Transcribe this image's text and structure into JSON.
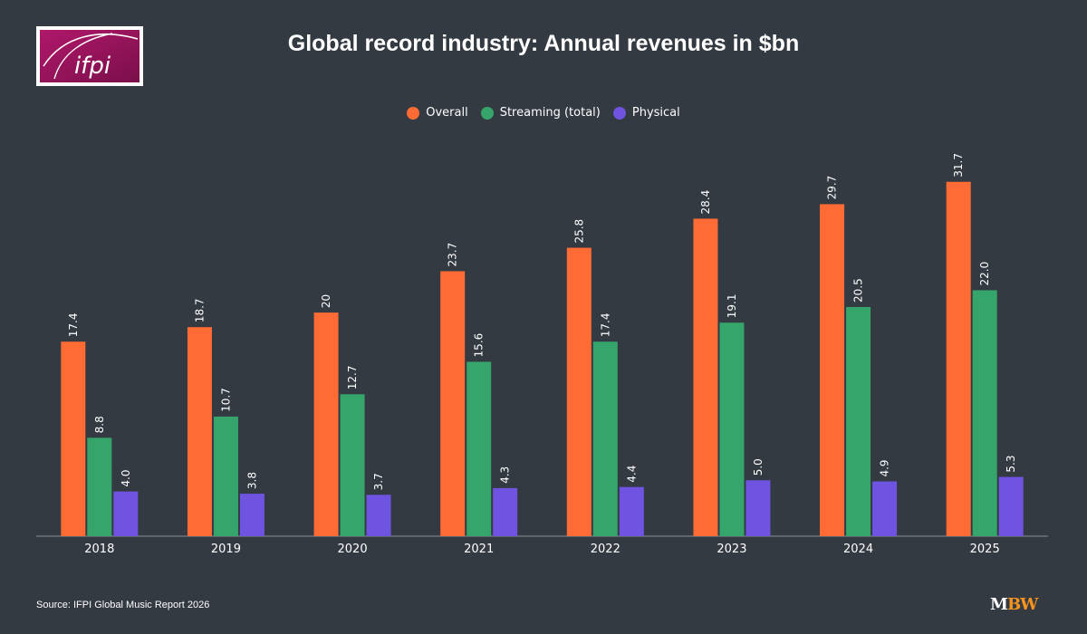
{
  "logo": {
    "text": "ifpi"
  },
  "title": "Global record industry: Annual revenues in $bn",
  "source": "Source: IFPI Global Music Report 2026",
  "brand": {
    "m": "M",
    "bw": "BW"
  },
  "chart_data": {
    "type": "bar",
    "title": "Global record industry: Annual revenues in $bn",
    "categories": [
      "2018",
      "2019",
      "2020",
      "2021",
      "2022",
      "2023",
      "2024",
      "2025"
    ],
    "series": [
      {
        "name": "Overall",
        "color": "#ff6b35",
        "values": [
          17.4,
          18.7,
          20,
          23.7,
          25.8,
          28.4,
          29.7,
          31.7
        ],
        "labels": [
          "17.4",
          "18.7",
          "20",
          "23.7",
          "25.8",
          "28.4",
          "29.7",
          "31.7"
        ]
      },
      {
        "name": "Streaming (total)",
        "color": "#35a56b",
        "values": [
          8.8,
          10.7,
          12.7,
          15.6,
          17.4,
          19.1,
          20.5,
          22.0
        ],
        "labels": [
          "8.8",
          "10.7",
          "12.7",
          "15.6",
          "17.4",
          "19.1",
          "20.5",
          "22.0"
        ]
      },
      {
        "name": "Physical",
        "color": "#6e54e0",
        "values": [
          4.0,
          3.8,
          3.7,
          4.3,
          4.4,
          5.0,
          4.9,
          5.3
        ],
        "labels": [
          "4.0",
          "3.8",
          "3.7",
          "4.3",
          "4.4",
          "5.0",
          "4.9",
          "5.3"
        ]
      }
    ],
    "ylim": [
      0,
      35
    ],
    "grid": false,
    "legend": "top-center"
  }
}
